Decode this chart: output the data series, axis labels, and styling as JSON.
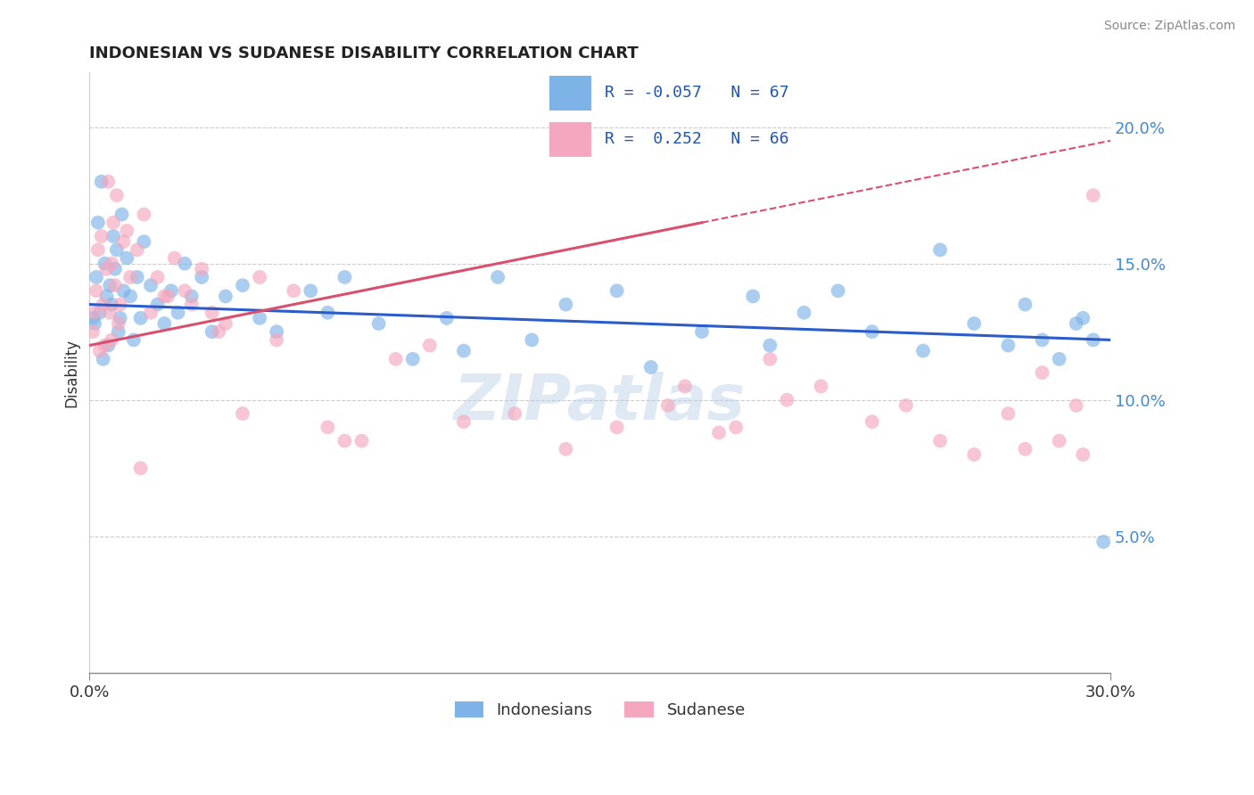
{
  "title": "INDONESIAN VS SUDANESE DISABILITY CORRELATION CHART",
  "source": "Source: ZipAtlas.com",
  "ylabel": "Disability",
  "xlim": [
    0.0,
    30.0
  ],
  "ylim": [
    0.0,
    22.0
  ],
  "x_tick_labels": [
    "0.0%",
    "30.0%"
  ],
  "y_ticks": [
    5.0,
    10.0,
    15.0,
    20.0
  ],
  "y_tick_labels": [
    "5.0%",
    "10.0%",
    "15.0%",
    "20.0%"
  ],
  "indonesian_color": "#7EB3E8",
  "sudanese_color": "#F4A7BE",
  "indonesian_line_color": "#2B5CC9",
  "sudanese_line_color": "#D94F6E",
  "R_indonesian": -0.057,
  "N_indonesian": 67,
  "R_sudanese": 0.252,
  "N_sudanese": 66,
  "legend_indonesian": "Indonesians",
  "legend_sudanese": "Sudanese",
  "watermark": "ZIPatlas",
  "indonesian_x": [
    0.1,
    0.15,
    0.2,
    0.25,
    0.3,
    0.35,
    0.4,
    0.45,
    0.5,
    0.55,
    0.6,
    0.65,
    0.7,
    0.75,
    0.8,
    0.85,
    0.9,
    0.95,
    1.0,
    1.1,
    1.2,
    1.3,
    1.4,
    1.5,
    1.6,
    1.8,
    2.0,
    2.2,
    2.4,
    2.6,
    2.8,
    3.0,
    3.3,
    3.6,
    4.0,
    4.5,
    5.0,
    5.5,
    6.5,
    7.0,
    7.5,
    8.5,
    9.5,
    10.5,
    11.0,
    12.0,
    13.0,
    14.0,
    15.5,
    16.5,
    18.0,
    19.5,
    20.0,
    21.0,
    22.0,
    23.0,
    24.5,
    25.0,
    26.0,
    27.0,
    27.5,
    28.0,
    28.5,
    29.0,
    29.2,
    29.5,
    29.8
  ],
  "indonesian_y": [
    13.0,
    12.8,
    14.5,
    16.5,
    13.2,
    18.0,
    11.5,
    15.0,
    13.8,
    12.0,
    14.2,
    13.5,
    16.0,
    14.8,
    15.5,
    12.5,
    13.0,
    16.8,
    14.0,
    15.2,
    13.8,
    12.2,
    14.5,
    13.0,
    15.8,
    14.2,
    13.5,
    12.8,
    14.0,
    13.2,
    15.0,
    13.8,
    14.5,
    12.5,
    13.8,
    14.2,
    13.0,
    12.5,
    14.0,
    13.2,
    14.5,
    12.8,
    11.5,
    13.0,
    11.8,
    14.5,
    12.2,
    13.5,
    14.0,
    11.2,
    12.5,
    13.8,
    12.0,
    13.2,
    14.0,
    12.5,
    11.8,
    15.5,
    12.8,
    12.0,
    13.5,
    12.2,
    11.5,
    12.8,
    13.0,
    12.2,
    4.8
  ],
  "sudanese_x": [
    0.1,
    0.15,
    0.2,
    0.25,
    0.3,
    0.35,
    0.4,
    0.45,
    0.5,
    0.55,
    0.6,
    0.65,
    0.7,
    0.75,
    0.8,
    0.85,
    0.9,
    1.0,
    1.1,
    1.2,
    1.4,
    1.6,
    1.8,
    2.0,
    2.2,
    2.5,
    2.8,
    3.0,
    3.3,
    3.6,
    4.0,
    4.5,
    5.0,
    5.5,
    6.0,
    7.0,
    8.0,
    9.0,
    10.0,
    11.0,
    12.5,
    14.0,
    15.5,
    17.0,
    18.5,
    20.0,
    21.5,
    23.0,
    24.0,
    25.0,
    26.0,
    27.0,
    27.5,
    28.0,
    28.5,
    29.0,
    29.2,
    29.5,
    17.5,
    19.0,
    20.5,
    7.5,
    3.8,
    2.3,
    0.65,
    1.5
  ],
  "sudanese_y": [
    12.5,
    13.2,
    14.0,
    15.5,
    11.8,
    16.0,
    13.5,
    12.0,
    14.8,
    18.0,
    13.2,
    15.0,
    16.5,
    14.2,
    17.5,
    12.8,
    13.5,
    15.8,
    16.2,
    14.5,
    15.5,
    16.8,
    13.2,
    14.5,
    13.8,
    15.2,
    14.0,
    13.5,
    14.8,
    13.2,
    12.8,
    9.5,
    14.5,
    12.2,
    14.0,
    9.0,
    8.5,
    11.5,
    12.0,
    9.2,
    9.5,
    8.2,
    9.0,
    9.8,
    8.8,
    11.5,
    10.5,
    9.2,
    9.8,
    8.5,
    8.0,
    9.5,
    8.2,
    11.0,
    8.5,
    9.8,
    8.0,
    17.5,
    10.5,
    9.0,
    10.0,
    8.5,
    12.5,
    13.8,
    12.2,
    7.5
  ],
  "ind_line_x0": 0.0,
  "ind_line_y0": 13.5,
  "ind_line_x1": 30.0,
  "ind_line_y1": 12.2,
  "sud_line_x0": 0.0,
  "sud_line_y0": 12.0,
  "sud_line_x1": 30.0,
  "sud_line_y1": 19.5,
  "sud_solid_end_x": 18.0,
  "grid_color": "#cccccc",
  "title_color": "#222222",
  "right_tick_color": "#4488cc"
}
